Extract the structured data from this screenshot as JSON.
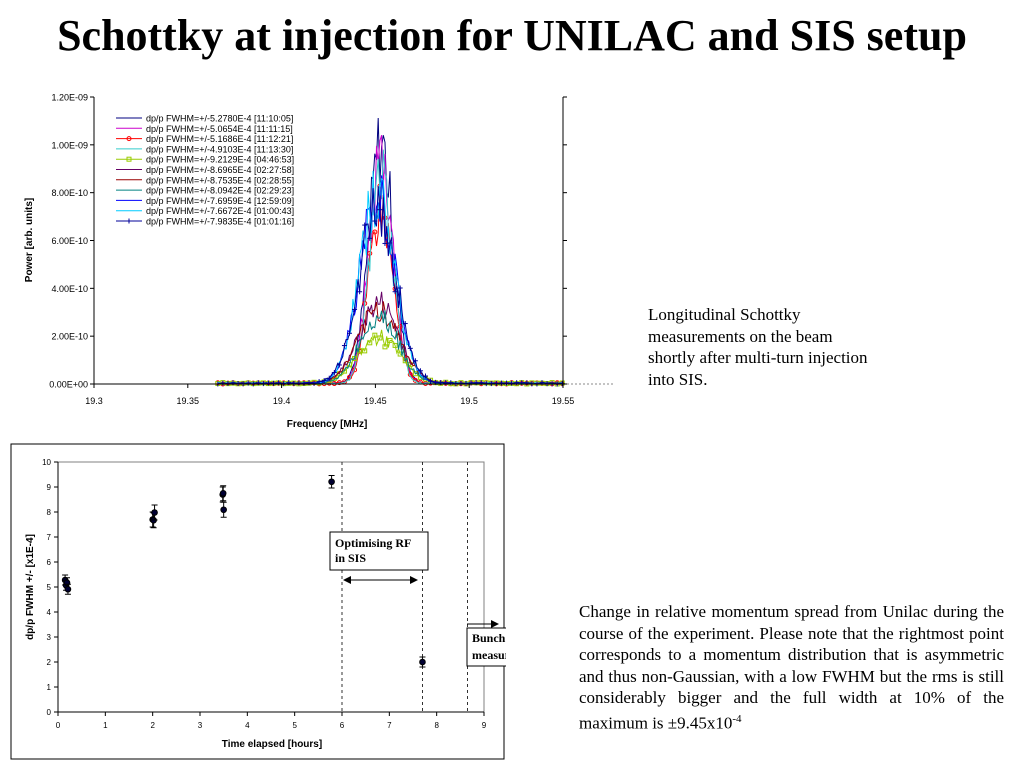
{
  "slide": {
    "title": "Schottky at injection for UNILAC and SIS setup",
    "text_upper": "Longitudinal Schottky measurements on the beam shortly after multi-turn injection into SIS.",
    "text_lower_main": "Change in relative momentum spread from Unilac during the course of the experiment. Please note that the rightmost point corresponds to a momentum distribution that is asymmetric and thus non-Gaussian, with a low FWHM but the rms is still considerably bigger and the full width at 10% of the maximum is ±9.45x10",
    "text_lower_exp": "-4"
  },
  "chart_data": [
    {
      "type": "line",
      "xlabel": "Frequency [MHz]",
      "ylabel": "Power [arb. units]",
      "xlim": [
        19.3,
        19.55
      ],
      "ylim": [
        0,
        1.2e-09
      ],
      "xticks": [
        "19.3",
        "19.35",
        "19.4",
        "19.45",
        "19.5",
        "19.55"
      ],
      "yticks": [
        "0.00E+00",
        "2.00E-10",
        "4.00E-10",
        "6.00E-10",
        "8.00E-10",
        "1.00E-09",
        "1.20E-09"
      ],
      "legend_position": "top-left",
      "series": [
        {
          "name": "dp/p FWHM=+/-5.2780E-4  [11:10:05]",
          "color": "#000080",
          "marker": "none",
          "center": 19.453,
          "fwhm": 0.0153,
          "peak": 1e-09
        },
        {
          "name": "dp/p FWHM=+/-5.0654E-4  [11:11:15]",
          "color": "#cc00cc",
          "marker": "none",
          "center": 19.453,
          "fwhm": 0.0147,
          "peak": 9.6e-10
        },
        {
          "name": "dp/p FWHM=+/-5.1686E-4  [11:12:21]",
          "color": "#ff0000",
          "marker": "circle",
          "center": 19.453,
          "fwhm": 0.015,
          "peak": 7.3e-10
        },
        {
          "name": "dp/p FWHM=+/-4.9103E-4  [11:13:30]",
          "color": "#33cccc",
          "marker": "none",
          "center": 19.453,
          "fwhm": 0.0143,
          "peak": 8.8e-10
        },
        {
          "name": "dp/p FWHM=+/-9.2129E-4  [04:46:53]",
          "color": "#99cc00",
          "marker": "square",
          "center": 19.452,
          "fwhm": 0.0268,
          "peak": 1.9e-10
        },
        {
          "name": "dp/p FWHM=+/-8.6965E-4  [02:27:58]",
          "color": "#660066",
          "marker": "none",
          "center": 19.452,
          "fwhm": 0.0252,
          "peak": 3.3e-10
        },
        {
          "name": "dp/p FWHM=+/-8.7535E-4  [02:28:55]",
          "color": "#990000",
          "marker": "none",
          "center": 19.452,
          "fwhm": 0.0254,
          "peak": 3.1e-10
        },
        {
          "name": "dp/p FWHM=+/-8.0942E-4  [02:29:23]",
          "color": "#008080",
          "marker": "none",
          "center": 19.452,
          "fwhm": 0.0235,
          "peak": 2.9e-10
        },
        {
          "name": "dp/p FWHM=+/-7.6959E-4  [12:59:09]",
          "color": "#0000ff",
          "marker": "none",
          "center": 19.451,
          "fwhm": 0.0223,
          "peak": 7.6e-10
        },
        {
          "name": "dp/p FWHM=+/-7.6672E-4  [01:00:43]",
          "color": "#00ccff",
          "marker": "none",
          "center": 19.451,
          "fwhm": 0.0222,
          "peak": 7.8e-10
        },
        {
          "name": "dp/p FWHM=+/-7.9835E-4  [01:01:16]",
          "color": "#000099",
          "marker": "plus",
          "center": 19.451,
          "fwhm": 0.0232,
          "peak": 7.3e-10
        }
      ]
    },
    {
      "type": "scatter",
      "xlabel": "Time elapsed [hours]",
      "ylabel": "dp/p FWHM +/- [x1E-4]",
      "xlim": [
        0,
        9
      ],
      "ylim": [
        0,
        10
      ],
      "xticks": [
        "0",
        "1",
        "2",
        "3",
        "4",
        "5",
        "6",
        "7",
        "8",
        "9"
      ],
      "yticks": [
        "0",
        "1",
        "2",
        "3",
        "4",
        "5",
        "6",
        "7",
        "8",
        "9",
        "10"
      ],
      "points": [
        {
          "x": 0.15,
          "y": 5.28,
          "err": 0.2
        },
        {
          "x": 0.17,
          "y": 5.07,
          "err": 0.2
        },
        {
          "x": 0.19,
          "y": 5.17,
          "err": 0.2
        },
        {
          "x": 0.21,
          "y": 4.91,
          "err": 0.2
        },
        {
          "x": 2.0,
          "y": 7.7,
          "err": 0.3
        },
        {
          "x": 2.02,
          "y": 7.67,
          "err": 0.3
        },
        {
          "x": 2.04,
          "y": 7.98,
          "err": 0.3
        },
        {
          "x": 3.48,
          "y": 8.7,
          "err": 0.3
        },
        {
          "x": 3.49,
          "y": 8.75,
          "err": 0.3
        },
        {
          "x": 3.5,
          "y": 8.09,
          "err": 0.3
        },
        {
          "x": 5.78,
          "y": 9.21,
          "err": 0.25
        },
        {
          "x": 7.7,
          "y": 2.0,
          "err": 0.2
        }
      ],
      "vlines": [
        6.0,
        7.7,
        8.65
      ],
      "annotations": [
        {
          "label": "Optimising RF\nin SIS"
        },
        {
          "label": "Bunch profile\nmeasurements"
        }
      ]
    }
  ]
}
